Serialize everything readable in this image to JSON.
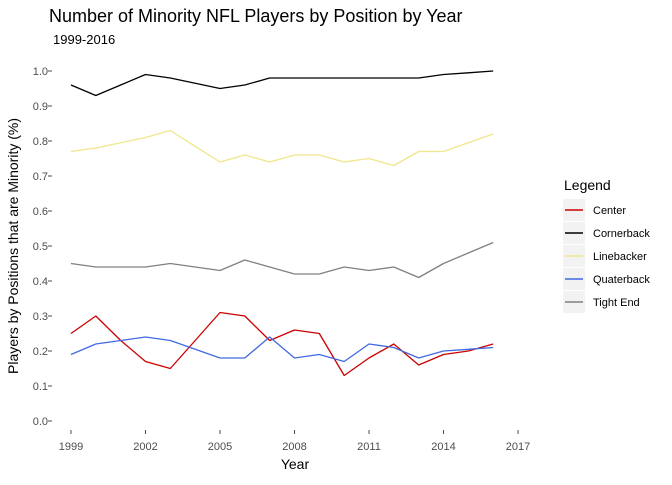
{
  "chart_data": {
    "type": "line",
    "title": "Number of Minority NFL Players by Position by Year",
    "subtitle": "1999-2016",
    "xlabel": "Year",
    "ylabel": "Players by Positions that are Minority (%)",
    "x_ticks": [
      "1999",
      "2002",
      "2005",
      "2008",
      "2011",
      "2014",
      "2017"
    ],
    "y_ticks": [
      "0.0",
      "0.1",
      "0.2",
      "0.3",
      "0.4",
      "0.5",
      "0.6",
      "0.7",
      "0.8",
      "0.9",
      "1.0"
    ],
    "xlim": [
      1999,
      2017
    ],
    "ylim": [
      0,
      1.0
    ],
    "grid": false,
    "legend": {
      "title": "Legend",
      "position": "right"
    },
    "x": [
      1999,
      2000,
      2001,
      2002,
      2003,
      2004,
      2005,
      2006,
      2007,
      2008,
      2009,
      2010,
      2011,
      2012,
      2013,
      2014,
      2015,
      2016
    ],
    "series": [
      {
        "name": "Center",
        "color": "#cc0000",
        "values": [
          0.25,
          0.3,
          0.23,
          0.17,
          0.15,
          0.23,
          0.31,
          0.3,
          0.23,
          0.26,
          0.25,
          0.13,
          0.18,
          0.22,
          0.16,
          0.19,
          0.2,
          0.22
        ]
      },
      {
        "name": "Cornerback",
        "color": "#000000",
        "values": [
          0.96,
          0.93,
          0.96,
          0.99,
          0.98,
          0.965,
          0.95,
          0.96,
          0.98,
          0.98,
          0.98,
          0.98,
          0.98,
          0.98,
          0.98,
          0.99,
          0.995,
          1.0
        ]
      },
      {
        "name": "Linebacker",
        "color": "#f0e68c",
        "values": [
          0.77,
          0.78,
          0.795,
          0.81,
          0.83,
          0.785,
          0.74,
          0.76,
          0.74,
          0.76,
          0.76,
          0.74,
          0.75,
          0.73,
          0.77,
          0.77,
          0.795,
          0.82
        ]
      },
      {
        "name": "Quaterback",
        "color": "#4169e1",
        "values": [
          0.19,
          0.22,
          0.23,
          0.24,
          0.23,
          0.205,
          0.18,
          0.18,
          0.24,
          0.18,
          0.19,
          0.17,
          0.22,
          0.21,
          0.18,
          0.2,
          0.205,
          0.21
        ]
      },
      {
        "name": "Tight End",
        "color": "#808080",
        "values": [
          0.45,
          0.44,
          0.44,
          0.44,
          0.45,
          0.44,
          0.43,
          0.46,
          0.44,
          0.42,
          0.42,
          0.44,
          0.43,
          0.44,
          0.41,
          0.45,
          0.48,
          0.51
        ]
      }
    ]
  }
}
